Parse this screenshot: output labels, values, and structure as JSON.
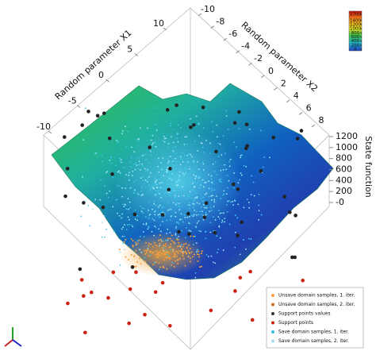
{
  "chart_data": {
    "type": "surface3d",
    "x_label": "Random parameter X1",
    "y_label": "Random parameter X2",
    "z_label": "State function",
    "xlim": [
      -10,
      10
    ],
    "xticks": [
      10,
      5,
      0,
      -5,
      -10
    ],
    "ylim": [
      -10,
      8
    ],
    "yticks": [
      -10,
      -8,
      -6,
      -4,
      -2,
      0,
      2,
      4,
      6,
      8
    ],
    "zlim": [
      0,
      1200
    ],
    "zticks": [
      1200,
      1000,
      800,
      600,
      400,
      200,
      {
        "value": 0,
        "label": "-0"
      }
    ],
    "colorbar": {
      "lim": [
        0,
        1700
      ],
      "ticks": [
        1700,
        1400,
        1200,
        1000,
        800,
        600,
        400,
        200,
        0
      ]
    },
    "legend": [
      {
        "name": "Unsave domain samples, 1. iter.",
        "color": "#f5a040"
      },
      {
        "name": "Unsave domain samples, 2. iter.",
        "color": "#d07010"
      },
      {
        "name": "Support points values",
        "color": "#333333"
      },
      {
        "name": "Support points",
        "color": "#cc2010"
      },
      {
        "name": "Save domain samples, 1. iter.",
        "color": "#30c0e0"
      },
      {
        "name": "Save domain samples, 2. iter.",
        "color": "#a0e0f0"
      }
    ]
  }
}
